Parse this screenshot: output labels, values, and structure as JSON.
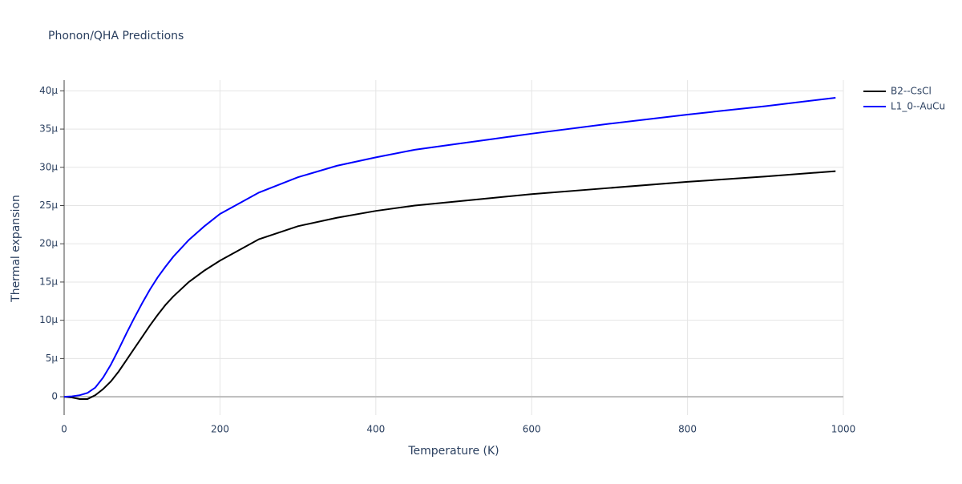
{
  "chart_data": {
    "type": "line",
    "title": "Phonon/QHA Predictions",
    "x_label": "Temperature (K)",
    "y_label": "Thermal expansion",
    "x": [
      0,
      10,
      20,
      30,
      40,
      50,
      60,
      70,
      80,
      90,
      100,
      110,
      120,
      130,
      140,
      160,
      180,
      200,
      250,
      300,
      350,
      400,
      450,
      500,
      550,
      600,
      700,
      800,
      900,
      990
    ],
    "series": [
      {
        "name": "B2--CsCl",
        "color": "#000000",
        "values": [
          0,
          -1e-07,
          -3e-07,
          -3e-07,
          2e-07,
          1e-06,
          2e-06,
          3.3e-06,
          4.8e-06,
          6.3e-06,
          7.8e-06,
          9.3e-06,
          1.07e-05,
          1.2e-05,
          1.31e-05,
          1.5e-05,
          1.65e-05,
          1.78e-05,
          2.06e-05,
          2.23e-05,
          2.34e-05,
          2.43e-05,
          2.5e-05,
          2.55e-05,
          2.6e-05,
          2.65e-05,
          2.73e-05,
          2.81e-05,
          2.88e-05,
          2.95e-05
        ]
      },
      {
        "name": "L1_0--AuCu",
        "color": "#0000ff",
        "values": [
          0,
          5e-08,
          2e-07,
          5e-07,
          1.2e-06,
          2.5e-06,
          4.2e-06,
          6.2e-06,
          8.3e-06,
          1.03e-05,
          1.22e-05,
          1.4e-05,
          1.56e-05,
          1.7e-05,
          1.83e-05,
          2.05e-05,
          2.23e-05,
          2.39e-05,
          2.67e-05,
          2.87e-05,
          3.02e-05,
          3.13e-05,
          3.23e-05,
          3.3e-05,
          3.37e-05,
          3.44e-05,
          3.57e-05,
          3.69e-05,
          3.8e-05,
          3.91e-05
        ]
      }
    ],
    "xlim": [
      0,
      1000
    ],
    "xticks": [
      0,
      200,
      400,
      600,
      800,
      1000
    ],
    "ylim": [
      -2.4e-06,
      4.14e-05
    ],
    "yticks": [
      0,
      {
        "value": 5e-06,
        "label": "5μ"
      },
      {
        "value": 1e-05,
        "label": "10μ"
      },
      {
        "value": 1.5e-05,
        "label": "15μ"
      },
      {
        "value": 2e-05,
        "label": "20μ"
      },
      {
        "value": 2.5e-05,
        "label": "25μ"
      },
      {
        "value": 3e-05,
        "label": "30μ"
      },
      {
        "value": 3.5e-05,
        "label": "35μ"
      },
      {
        "value": 4e-05,
        "label": "40μ"
      }
    ],
    "grid": true
  }
}
